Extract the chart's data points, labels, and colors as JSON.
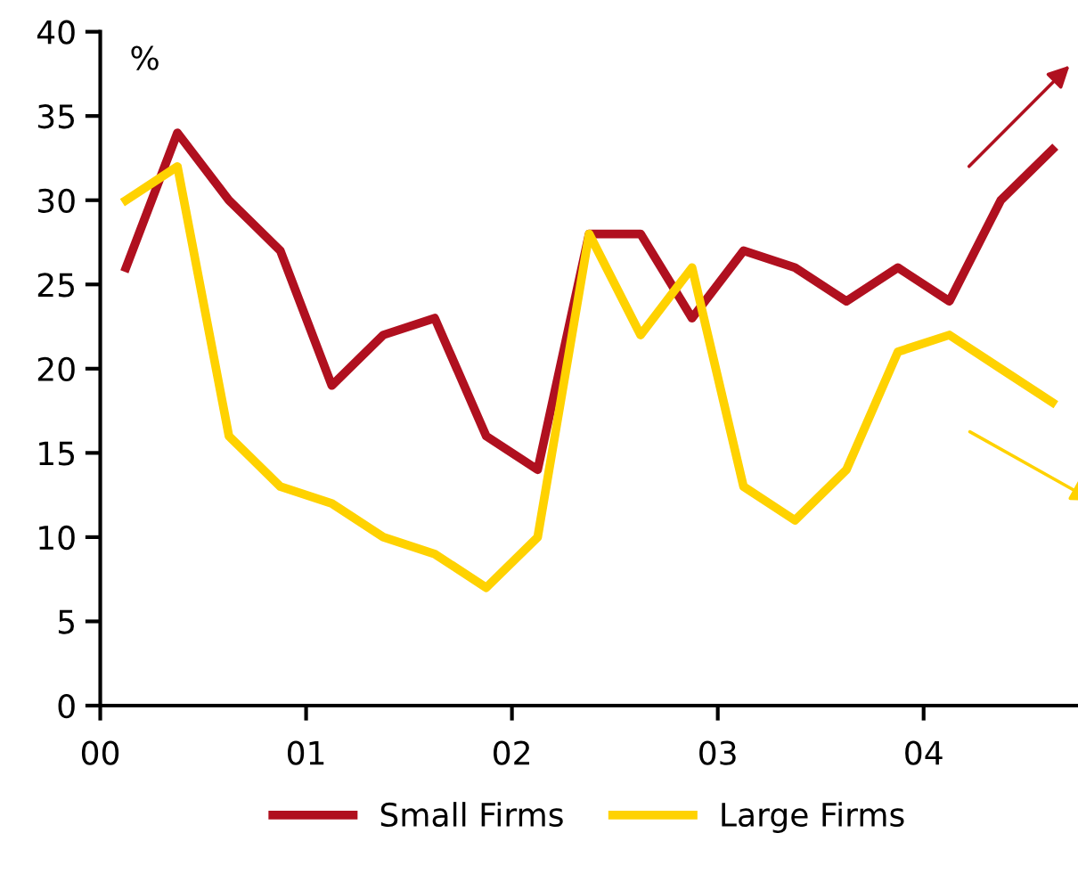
{
  "chart_data": {
    "type": "line",
    "ylabel": "%",
    "x": [
      0.125,
      0.375,
      0.625,
      0.875,
      1.125,
      1.375,
      1.625,
      1.875,
      2.125,
      2.375,
      2.625,
      2.875,
      3.125,
      3.375,
      3.625,
      3.875,
      4.125,
      4.375,
      4.625
    ],
    "series": [
      {
        "name": "Small Firms",
        "color": "#b0101f",
        "values": [
          26,
          34,
          30,
          27,
          19,
          22,
          23,
          16,
          14,
          28,
          28,
          23,
          27,
          26,
          24,
          26,
          24,
          30,
          33
        ]
      },
      {
        "name": "Large Firms",
        "color": "#ffd200",
        "values": [
          30,
          32,
          16,
          13,
          12,
          10,
          9,
          7,
          10,
          28,
          22,
          26,
          13,
          11,
          14,
          21,
          22,
          20,
          18
        ]
      }
    ],
    "xlim": [
      0,
      4.75
    ],
    "xticks": [
      {
        "value": 0,
        "label": "00"
      },
      {
        "value": 1,
        "label": "01"
      },
      {
        "value": 2,
        "label": "02"
      },
      {
        "value": 3,
        "label": "03"
      },
      {
        "value": 4,
        "label": "04"
      }
    ],
    "ylim": [
      0,
      40
    ],
    "yticks": [
      0,
      5,
      10,
      15,
      20,
      25,
      30,
      35,
      40
    ],
    "grid": false,
    "legend": "bottom",
    "marker": "none",
    "line_style": "solid"
  }
}
